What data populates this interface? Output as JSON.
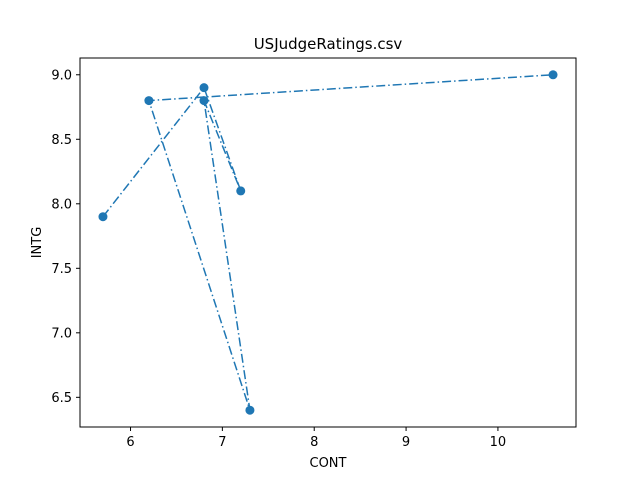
{
  "chart_data": {
    "type": "line",
    "title": "USJudgeRatings.csv",
    "xlabel": "CONT",
    "ylabel": "INTG",
    "xlim": [
      5.45,
      10.85
    ],
    "ylim": [
      6.27,
      9.13
    ],
    "xticks": [
      6,
      7,
      8,
      9,
      10
    ],
    "xtick_labels": [
      "6",
      "7",
      "8",
      "9",
      "10"
    ],
    "yticks": [
      6.5,
      7.0,
      7.5,
      8.0,
      8.5,
      9.0
    ],
    "ytick_labels": [
      "6.5",
      "7.0",
      "7.5",
      "8.0",
      "8.5",
      "9.0"
    ],
    "grid": false,
    "series": [
      {
        "color": "#1f77b4",
        "line_style": "dash-dot",
        "marker": "circle",
        "x": [
          5.7,
          6.8,
          7.2,
          6.8,
          7.3,
          6.2,
          10.6
        ],
        "y": [
          7.9,
          8.9,
          8.1,
          8.8,
          6.4,
          8.8,
          9.0
        ]
      }
    ]
  }
}
